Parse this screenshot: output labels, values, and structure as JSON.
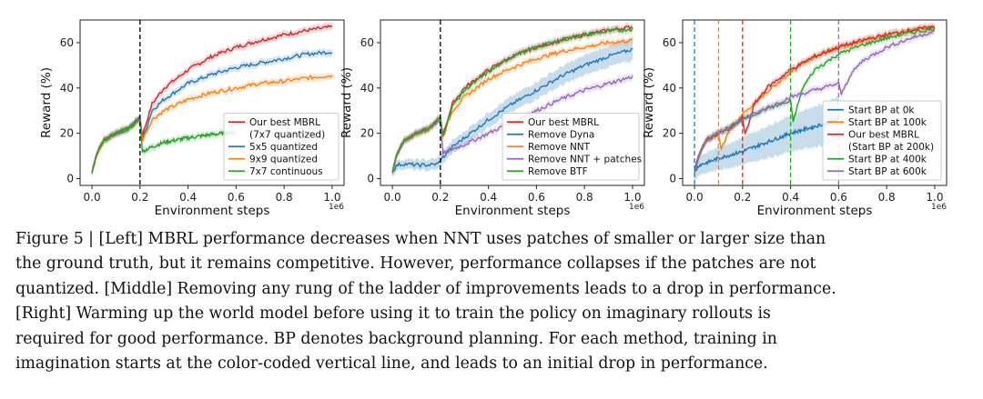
{
  "chart_data": [
    {
      "type": "line",
      "title": "",
      "xlabel": "Environment steps",
      "ylabel": "Reward (%)",
      "x_multiplier": "1e6",
      "xlim": [
        0,
        1.0
      ],
      "ylim": [
        0,
        70
      ],
      "xticks": [
        "0.0",
        "0.2",
        "0.4",
        "0.6",
        "0.8",
        "1.0"
      ],
      "yticks": [
        "0",
        "20",
        "40",
        "60"
      ],
      "legend_position": "lower-right",
      "annotations": [
        {
          "type": "vline",
          "x": 0.2,
          "color": "#000000",
          "style": "dashed"
        }
      ],
      "series": [
        {
          "name": "Our best MBRL",
          "name2": "(7x7 quantized)",
          "color": "#d62728",
          "x": [
            0,
            0.02,
            0.05,
            0.1,
            0.15,
            0.2,
            0.21,
            0.25,
            0.3,
            0.4,
            0.5,
            0.6,
            0.7,
            0.8,
            0.9,
            1.0
          ],
          "values": [
            3,
            11,
            17,
            20,
            22,
            27,
            19,
            33,
            40,
            48,
            54,
            58,
            61,
            63.5,
            65.5,
            67
          ]
        },
        {
          "name": "5x5 quantized",
          "color": "#1f77b4",
          "x": [
            0,
            0.02,
            0.05,
            0.1,
            0.15,
            0.2,
            0.21,
            0.25,
            0.3,
            0.4,
            0.5,
            0.6,
            0.7,
            0.8,
            0.9,
            1.0
          ],
          "values": [
            3,
            11,
            17,
            20,
            22,
            27,
            17,
            30,
            35,
            42,
            46,
            49,
            51,
            53,
            55,
            56
          ]
        },
        {
          "name": "9x9 quantized",
          "color": "#ff7f0e",
          "x": [
            0,
            0.02,
            0.05,
            0.1,
            0.15,
            0.2,
            0.21,
            0.25,
            0.3,
            0.4,
            0.5,
            0.6,
            0.7,
            0.8,
            0.9,
            1.0
          ],
          "values": [
            3,
            11,
            17,
            20,
            22,
            26,
            17,
            26,
            30,
            35,
            38,
            40,
            42,
            43,
            44.5,
            45.5
          ]
        },
        {
          "name": "7x7 continuous",
          "color": "#2ca02c",
          "x": [
            0,
            0.02,
            0.05,
            0.1,
            0.15,
            0.2,
            0.21,
            0.25,
            0.3,
            0.4,
            0.5,
            0.55,
            0.6
          ],
          "values": [
            3,
            11,
            17,
            20,
            22,
            26,
            12,
            14,
            16,
            18,
            19.5,
            20,
            20.5
          ]
        }
      ]
    },
    {
      "type": "line",
      "title": "",
      "xlabel": "Environment steps",
      "ylabel": "Reward (%)",
      "x_multiplier": "1e6",
      "xlim": [
        0,
        1.0
      ],
      "ylim": [
        0,
        70
      ],
      "xticks": [
        "0.0",
        "0.2",
        "0.4",
        "0.6",
        "0.8",
        "1.0"
      ],
      "yticks": [
        "0",
        "20",
        "40",
        "60"
      ],
      "legend_position": "lower-right",
      "annotations": [
        {
          "type": "vline",
          "x": 0.2,
          "color": "#000000",
          "style": "dashed"
        }
      ],
      "series": [
        {
          "name": "Our best MBRL",
          "color": "#d62728",
          "x": [
            0,
            0.02,
            0.05,
            0.1,
            0.15,
            0.2,
            0.21,
            0.25,
            0.3,
            0.4,
            0.5,
            0.6,
            0.7,
            0.8,
            0.9,
            1.0
          ],
          "values": [
            3,
            11,
            17,
            20,
            22,
            27,
            19,
            33,
            40,
            48,
            54,
            58,
            61,
            63.5,
            65.5,
            67
          ]
        },
        {
          "name": "Remove Dyna",
          "color": "#1f77b4",
          "band": 5,
          "x": [
            0,
            0.02,
            0.05,
            0.1,
            0.15,
            0.19,
            0.2,
            0.25,
            0.3,
            0.4,
            0.5,
            0.6,
            0.7,
            0.8,
            0.9,
            1.0
          ],
          "values": [
            3,
            6,
            6.5,
            6,
            6,
            6.5,
            8,
            14,
            18,
            26,
            33,
            39,
            45,
            50,
            54,
            57
          ]
        },
        {
          "name": "Remove NNT",
          "color": "#ff7f0e",
          "x": [
            0,
            0.02,
            0.05,
            0.1,
            0.15,
            0.2,
            0.21,
            0.25,
            0.3,
            0.4,
            0.5,
            0.6,
            0.7,
            0.8,
            0.9,
            1.0
          ],
          "values": [
            3,
            11,
            17,
            20,
            22,
            26,
            18,
            30,
            36,
            44,
            49,
            53,
            56,
            58,
            60,
            61
          ]
        },
        {
          "name": "Remove NNT + patches",
          "color": "#9467bd",
          "x": [
            0,
            0.02,
            0.05,
            0.1,
            0.15,
            0.2,
            0.21,
            0.25,
            0.3,
            0.4,
            0.5,
            0.6,
            0.7,
            0.8,
            0.9,
            1.0
          ],
          "values": [
            3,
            11,
            17,
            20,
            22,
            26,
            11,
            13,
            15,
            20,
            25,
            30,
            35,
            39,
            42,
            45
          ]
        },
        {
          "name": "Remove BTF",
          "color": "#2ca02c",
          "x": [
            0,
            0.02,
            0.05,
            0.1,
            0.15,
            0.2,
            0.21,
            0.25,
            0.3,
            0.4,
            0.5,
            0.6,
            0.7,
            0.8,
            0.9,
            1.0
          ],
          "values": [
            3,
            11,
            17,
            20,
            22,
            27,
            19,
            32,
            39,
            47,
            54,
            58,
            61,
            63.5,
            65,
            66
          ]
        }
      ]
    },
    {
      "type": "line",
      "title": "",
      "xlabel": "Environment steps",
      "ylabel": "Reward (%)",
      "x_multiplier": "1e6",
      "xlim": [
        0,
        1.0
      ],
      "ylim": [
        0,
        70
      ],
      "xticks": [
        "0.0",
        "0.2",
        "0.4",
        "0.6",
        "0.8",
        "1.0"
      ],
      "yticks": [
        "0",
        "20",
        "40",
        "60"
      ],
      "legend_position": "lower-right",
      "annotations": [
        {
          "type": "vline",
          "x": 0.0,
          "color": "#1f77b4",
          "style": "dashed"
        },
        {
          "type": "vline",
          "x": 0.1,
          "color": "#ff7f0e",
          "style": "dashed"
        },
        {
          "type": "vline",
          "x": 0.2,
          "color": "#d62728",
          "style": "dashed"
        },
        {
          "type": "vline",
          "x": 0.4,
          "color": "#2ca02c",
          "style": "dashed"
        },
        {
          "type": "vline",
          "x": 0.6,
          "color": "#9467bd",
          "style": "dashed"
        }
      ],
      "series": [
        {
          "name": "Start BP at 0k",
          "color": "#1f77b4",
          "band": 10,
          "x": [
            0,
            0.02,
            0.05,
            0.1,
            0.2,
            0.3,
            0.4,
            0.5,
            0.6
          ],
          "values": [
            3,
            6,
            7,
            9,
            12,
            16,
            20,
            23,
            26
          ]
        },
        {
          "name": "Start BP at 100k",
          "color": "#ff7f0e",
          "x": [
            0,
            0.02,
            0.05,
            0.1,
            0.11,
            0.15,
            0.2,
            0.3,
            0.4,
            0.5,
            0.6,
            0.7,
            0.8,
            0.9,
            1.0
          ],
          "values": [
            3,
            11,
            17,
            20,
            13,
            22,
            28,
            38,
            47,
            54,
            58,
            61,
            63.5,
            65.5,
            67
          ]
        },
        {
          "name": "Our best MBRL",
          "name2": "(Start BP at 200k)",
          "color": "#d62728",
          "x": [
            0,
            0.02,
            0.05,
            0.1,
            0.15,
            0.2,
            0.21,
            0.25,
            0.3,
            0.4,
            0.5,
            0.6,
            0.7,
            0.8,
            0.9,
            1.0
          ],
          "values": [
            3,
            11,
            17,
            20,
            22,
            27,
            19,
            33,
            40,
            48,
            54,
            58,
            61,
            63.5,
            65.5,
            67
          ]
        },
        {
          "name": "Start BP at 400k",
          "color": "#2ca02c",
          "x": [
            0,
            0.02,
            0.05,
            0.1,
            0.2,
            0.3,
            0.4,
            0.41,
            0.45,
            0.5,
            0.6,
            0.7,
            0.8,
            0.9,
            1.0
          ],
          "values": [
            3,
            11,
            17,
            20,
            26,
            31,
            34,
            25,
            40,
            48,
            55,
            59,
            62,
            64.5,
            66
          ]
        },
        {
          "name": "Start BP at 600k",
          "color": "#9467bd",
          "x": [
            0,
            0.02,
            0.05,
            0.1,
            0.2,
            0.3,
            0.4,
            0.5,
            0.6,
            0.61,
            0.65,
            0.7,
            0.8,
            0.9,
            1.0
          ],
          "values": [
            3,
            11,
            17,
            20,
            26,
            31,
            36,
            39,
            42,
            37,
            46,
            52,
            58,
            62,
            65
          ]
        }
      ]
    }
  ],
  "caption": {
    "lines": [
      "Figure 5 | [Left] MBRL performance decreases when NNT uses patches of smaller or larger size than",
      "the ground truth, but it remains competitive. However, performance collapses if the patches are not",
      "quantized. [Middle] Removing any rung of the ladder of improvements leads to a drop in performance.",
      "[Right] Warming up the world model before using it to train the policy on imaginary rollouts is",
      "required for good performance. BP denotes background planning. For each method, training in",
      "imagination starts at the color-coded vertical line, and leads to an initial drop in performance."
    ]
  }
}
